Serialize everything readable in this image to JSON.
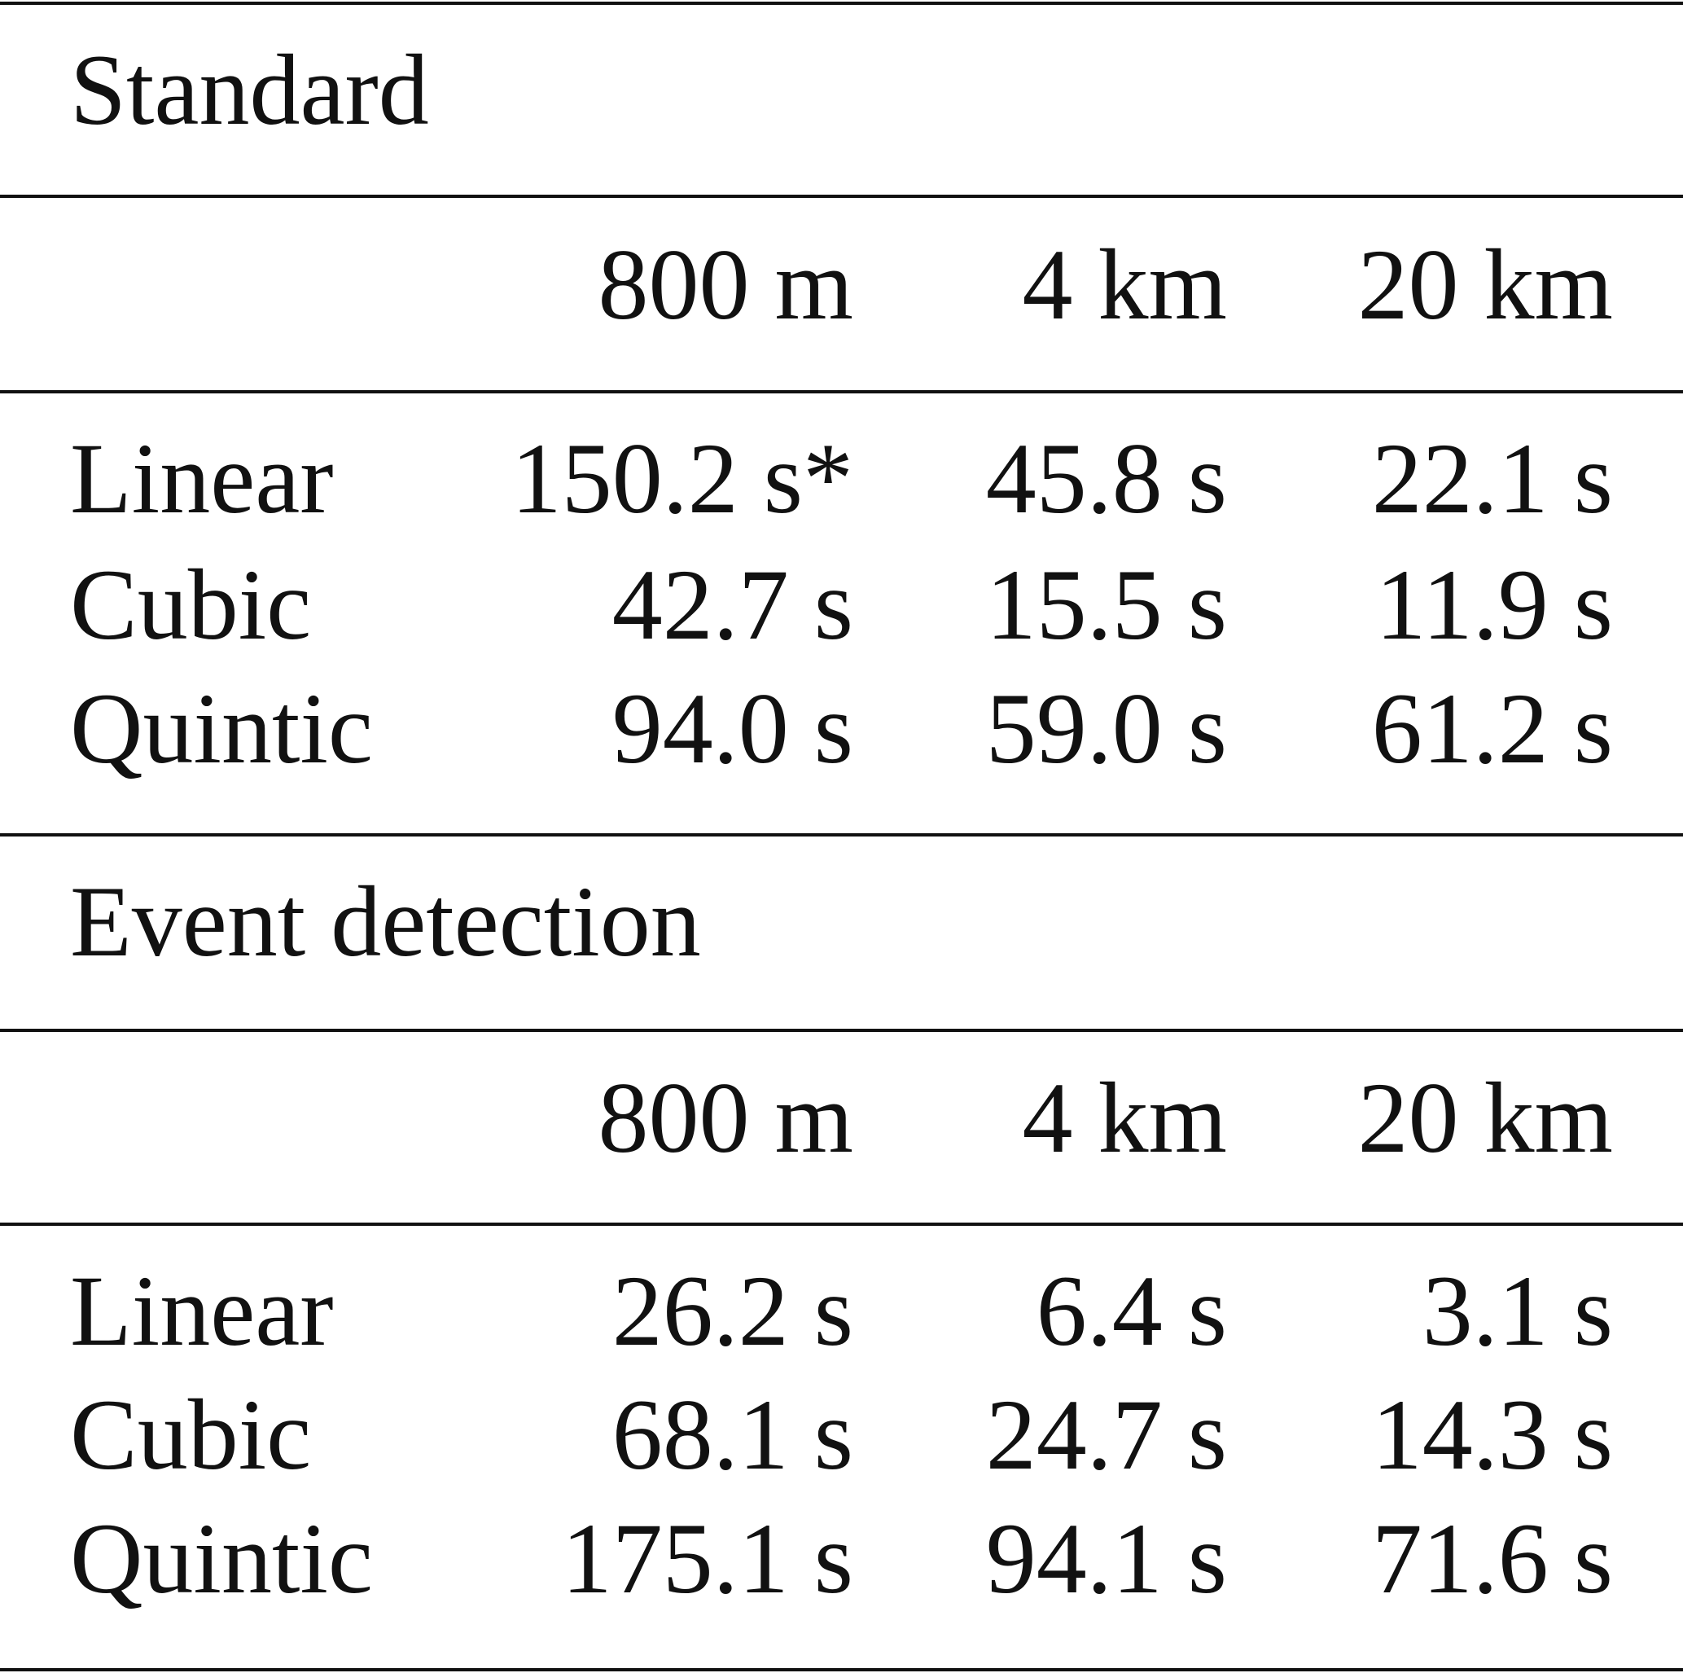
{
  "sections": [
    {
      "title": "Standard",
      "columns": [
        "800 m",
        "4 km",
        "20 km"
      ],
      "rows": [
        {
          "label": "Linear",
          "cells": [
            "150.2 s*",
            "45.8 s",
            "22.1 s"
          ]
        },
        {
          "label": "Cubic",
          "cells": [
            "42.7 s",
            "15.5 s",
            "11.9 s"
          ]
        },
        {
          "label": "Quintic",
          "cells": [
            "94.0 s",
            "59.0 s",
            "61.2 s"
          ]
        }
      ]
    },
    {
      "title": "Event detection",
      "columns": [
        "800 m",
        "4 km",
        "20 km"
      ],
      "rows": [
        {
          "label": "Linear",
          "cells": [
            "26.2 s",
            "6.4 s",
            "3.1 s"
          ]
        },
        {
          "label": "Cubic",
          "cells": [
            "68.1 s",
            "24.7 s",
            "14.3 s"
          ]
        },
        {
          "label": "Quintic",
          "cells": [
            "175.1 s",
            "94.1 s",
            "71.6 s"
          ]
        }
      ]
    }
  ]
}
